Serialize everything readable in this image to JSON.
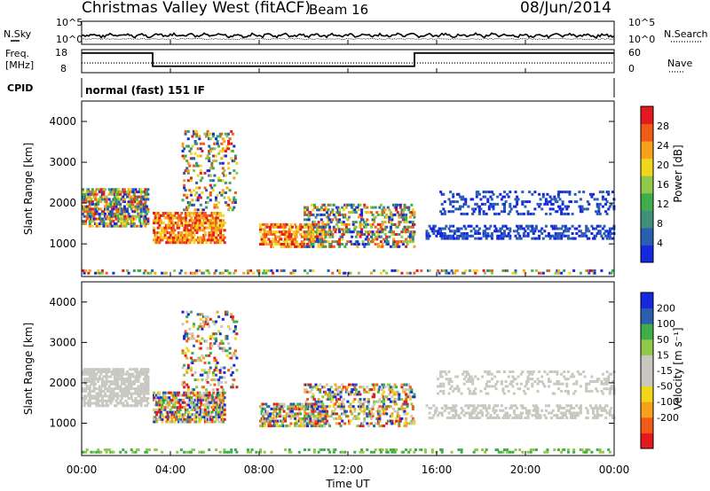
{
  "header": {
    "station": "Christmas Valley West (fitACF)",
    "beam": "Beam 16",
    "date": "08/Jun/2014"
  },
  "panel_labels": {
    "nsky": "N.Sky",
    "nsearch": "N.Search",
    "freq_line1": "Freq.",
    "freq_line2": "[MHz]",
    "nave": "Nave",
    "cpid": "CPID",
    "cpid_value": "normal (fast) 151 IF"
  },
  "colors": {
    "power_scale": [
      "#1428e0",
      "#2a5fb0",
      "#3f8f7a",
      "#3fae4a",
      "#90c94a",
      "#f1d71a",
      "#f7a21c",
      "#f25a18",
      "#e41a1c"
    ],
    "velocity_scale": [
      "#e41a1c",
      "#f25a18",
      "#f7a21c",
      "#f1d71a",
      "#c8c8c0",
      "#c8c8c0",
      "#90c94a",
      "#3fae4a",
      "#2a5fb0",
      "#1428e0"
    ],
    "ground_scatter": "#c8c8c0"
  },
  "chart_data": [
    {
      "type": "line",
      "name": "noise-panel",
      "left_label": "N.Sky",
      "right_label": "N.Search",
      "yticks_left": [
        "10^5",
        "10^0"
      ],
      "yticks_right": [
        "10^5",
        "10^0"
      ],
      "ylim": [
        0,
        5
      ],
      "yscale": "log"
    },
    {
      "type": "line",
      "name": "frequency-nave-panel",
      "left_label": "Freq. [MHz]",
      "right_label": "Nave",
      "yticks_left": [
        "18",
        "8"
      ],
      "yticks_right": [
        "60",
        "0"
      ],
      "ylim_left": [
        8,
        18
      ],
      "ylim_right": [
        0,
        60
      ],
      "freq_steps": [
        {
          "t": 0,
          "value": 16.5
        },
        {
          "t": 3.2,
          "value": 10.8
        },
        {
          "t": 15.0,
          "value": 16.5
        },
        {
          "t": 24,
          "value": 16.5
        }
      ]
    },
    {
      "type": "heatmap",
      "name": "power-panel",
      "title": "",
      "ylabel": "Slant Range [km]",
      "xlim": [
        0,
        24
      ],
      "ylim": [
        200,
        4500
      ],
      "yticks": [
        "1000",
        "2000",
        "3000",
        "4000"
      ],
      "colorbar_label": "Power [dB]",
      "colorbar_ticks": [
        "4",
        "8",
        "12",
        "16",
        "20",
        "24",
        "28"
      ],
      "colorbar_range": [
        0,
        30
      ]
    },
    {
      "type": "heatmap",
      "name": "velocity-panel",
      "ylabel": "Slant Range [km]",
      "xlabel": "Time UT",
      "xlim": [
        0,
        24
      ],
      "ylim": [
        200,
        4500
      ],
      "yticks": [
        "1000",
        "2000",
        "3000",
        "4000"
      ],
      "xticks": [
        "00:00",
        "04:00",
        "08:00",
        "12:00",
        "16:00",
        "20:00",
        "00:00"
      ],
      "colorbar_label": "Velocity [m s⁻¹]",
      "colorbar_ticks": [
        "200",
        "100",
        "50",
        "15",
        "-15",
        "-50",
        "-100",
        "-200"
      ],
      "colorbar_range": [
        -250,
        250
      ]
    }
  ]
}
